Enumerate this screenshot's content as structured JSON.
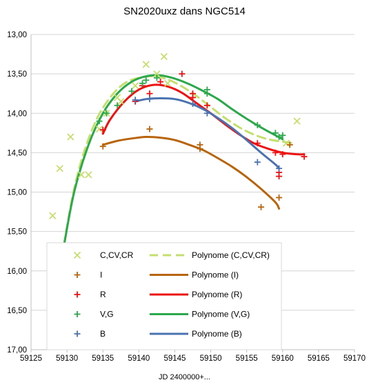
{
  "chart_data": {
    "type": "scatter",
    "title": "SN2020uxz dans NGC514",
    "xlabel": "JD 2400000+...",
    "ylabel": "",
    "xlim": [
      59125,
      59170
    ],
    "ylim": [
      13.0,
      17.0
    ],
    "y_inverted": true,
    "x_ticks": [
      "59125",
      "59130",
      "59135",
      "59140",
      "59145",
      "59150",
      "59155",
      "59160",
      "59165",
      "59170"
    ],
    "y_ticks": [
      "13,00",
      "13,50",
      "14,00",
      "14,50",
      "15,00",
      "15,50",
      "16,00",
      "16,50",
      "17,00"
    ],
    "grid": "horizontal",
    "legend_position": "bottom-left inside",
    "series": [
      {
        "name": "C,CV,CR",
        "marker": "x",
        "color": "#c5df6d",
        "points": [
          [
            59128.0,
            15.3
          ],
          [
            59129.0,
            14.7
          ],
          [
            59130.5,
            14.3
          ],
          [
            59132.0,
            14.78
          ],
          [
            59133.0,
            14.78
          ],
          [
            59134.5,
            14.2
          ],
          [
            59135.5,
            14.0
          ],
          [
            59137.0,
            13.8
          ],
          [
            59137.5,
            13.85
          ],
          [
            59139.5,
            13.65
          ],
          [
            59141.0,
            13.38
          ],
          [
            59142.5,
            13.5
          ],
          [
            59143.5,
            13.28
          ],
          [
            59144.0,
            13.62
          ],
          [
            59160.5,
            14.38
          ],
          [
            59162.0,
            14.1
          ]
        ]
      },
      {
        "name": "I",
        "marker": "+",
        "color": "#b8640b",
        "points": [
          [
            59135.0,
            14.42
          ],
          [
            59141.5,
            14.2
          ],
          [
            59148.5,
            14.4
          ],
          [
            59148.5,
            14.45
          ],
          [
            59157.0,
            15.19
          ],
          [
            59159.5,
            15.07
          ],
          [
            59161.0,
            14.4
          ]
        ]
      },
      {
        "name": "R",
        "marker": "+",
        "color": "#ee1111",
        "points": [
          [
            59135.0,
            14.21
          ],
          [
            59139.5,
            13.85
          ],
          [
            59140.5,
            13.65
          ],
          [
            59141.5,
            13.75
          ],
          [
            59143.0,
            13.6
          ],
          [
            59146.0,
            13.5
          ],
          [
            59147.5,
            13.75
          ],
          [
            59147.5,
            13.8
          ],
          [
            59149.5,
            13.9
          ],
          [
            59156.5,
            14.38
          ],
          [
            59159.0,
            14.5
          ],
          [
            59159.5,
            14.75
          ],
          [
            59159.5,
            14.8
          ],
          [
            59160.0,
            14.52
          ],
          [
            59163.0,
            14.55
          ]
        ]
      },
      {
        "name": "V,G",
        "marker": "+",
        "color": "#2aa84a",
        "points": [
          [
            59134.5,
            14.1
          ],
          [
            59135.5,
            14.0
          ],
          [
            59137.0,
            13.9
          ],
          [
            59139.0,
            13.72
          ],
          [
            59140.5,
            13.62
          ],
          [
            59141.0,
            13.58
          ],
          [
            59142.5,
            13.55
          ],
          [
            59149.5,
            13.7
          ],
          [
            59149.5,
            13.75
          ],
          [
            59156.5,
            14.15
          ],
          [
            59159.0,
            14.25
          ],
          [
            59159.5,
            14.3
          ],
          [
            59160.0,
            14.28
          ]
        ]
      },
      {
        "name": "B",
        "marker": "+",
        "color": "#4a72b0",
        "points": [
          [
            59139.5,
            13.83
          ],
          [
            59141.5,
            13.82
          ],
          [
            59147.5,
            13.88
          ],
          [
            59149.5,
            14.0
          ],
          [
            59156.5,
            14.62
          ],
          [
            59159.5,
            14.7
          ]
        ]
      }
    ],
    "trendlines": [
      {
        "name": "Polynome (C,CV,CR)",
        "color": "#c5df6d",
        "style": "dashed",
        "points": [
          [
            59129.0,
            16.0
          ],
          [
            59130.5,
            15.18
          ],
          [
            59132.0,
            14.6
          ],
          [
            59134.0,
            14.1
          ],
          [
            59136.0,
            13.8
          ],
          [
            59138.0,
            13.62
          ],
          [
            59140.0,
            13.55
          ],
          [
            59142.0,
            13.53
          ],
          [
            59144.0,
            13.57
          ],
          [
            59146.0,
            13.66
          ],
          [
            59148.0,
            13.78
          ],
          [
            59150.0,
            13.92
          ],
          [
            59152.0,
            14.06
          ],
          [
            59154.0,
            14.18
          ],
          [
            59156.0,
            14.27
          ],
          [
            59158.0,
            14.33
          ],
          [
            59160.0,
            14.36
          ],
          [
            59161.5,
            14.38
          ]
        ]
      },
      {
        "name": "Polynome (I)",
        "color": "#b8640b",
        "style": "solid",
        "points": [
          [
            59135.0,
            14.4
          ],
          [
            59137.0,
            14.35
          ],
          [
            59139.0,
            14.32
          ],
          [
            59141.0,
            14.3
          ],
          [
            59143.0,
            14.31
          ],
          [
            59145.0,
            14.34
          ],
          [
            59147.0,
            14.4
          ],
          [
            59149.0,
            14.47
          ],
          [
            59151.0,
            14.57
          ],
          [
            59153.0,
            14.68
          ],
          [
            59155.0,
            14.81
          ],
          [
            59157.0,
            14.96
          ],
          [
            59159.0,
            15.13
          ],
          [
            59159.5,
            15.21
          ]
        ]
      },
      {
        "name": "Polynome (R)",
        "color": "#ee1111",
        "style": "solid",
        "points": [
          [
            59135.0,
            14.26
          ],
          [
            59136.0,
            14.08
          ],
          [
            59138.0,
            13.85
          ],
          [
            59140.0,
            13.7
          ],
          [
            59142.0,
            13.64
          ],
          [
            59144.0,
            13.66
          ],
          [
            59146.0,
            13.74
          ],
          [
            59148.0,
            13.87
          ],
          [
            59150.0,
            14.0
          ],
          [
            59152.0,
            14.14
          ],
          [
            59154.0,
            14.27
          ],
          [
            59156.0,
            14.38
          ],
          [
            59158.0,
            14.45
          ],
          [
            59160.0,
            14.5
          ],
          [
            59162.0,
            14.52
          ],
          [
            59163.0,
            14.52
          ]
        ]
      },
      {
        "name": "Polynome (V,G)",
        "color": "#2aa84a",
        "style": "solid",
        "points": [
          [
            59129.5,
            15.72
          ],
          [
            59131.0,
            15.0
          ],
          [
            59133.0,
            14.4
          ],
          [
            59135.0,
            14.0
          ],
          [
            59137.0,
            13.75
          ],
          [
            59139.0,
            13.6
          ],
          [
            59141.0,
            13.53
          ],
          [
            59143.0,
            13.52
          ],
          [
            59145.0,
            13.56
          ],
          [
            59147.0,
            13.63
          ],
          [
            59149.0,
            13.72
          ],
          [
            59151.0,
            13.82
          ],
          [
            59153.0,
            13.95
          ],
          [
            59155.0,
            14.07
          ],
          [
            59157.0,
            14.18
          ],
          [
            59159.0,
            14.28
          ],
          [
            59160.0,
            14.33
          ]
        ]
      },
      {
        "name": "Polynome (B)",
        "color": "#4a72b0",
        "style": "solid",
        "points": [
          [
            59139.5,
            13.85
          ],
          [
            59141.0,
            13.82
          ],
          [
            59143.0,
            13.81
          ],
          [
            59145.0,
            13.82
          ],
          [
            59147.0,
            13.87
          ],
          [
            59149.0,
            13.95
          ],
          [
            59151.0,
            14.06
          ],
          [
            59153.0,
            14.19
          ],
          [
            59155.0,
            14.34
          ],
          [
            59157.0,
            14.5
          ],
          [
            59159.0,
            14.65
          ],
          [
            59159.5,
            14.7
          ]
        ]
      }
    ]
  }
}
